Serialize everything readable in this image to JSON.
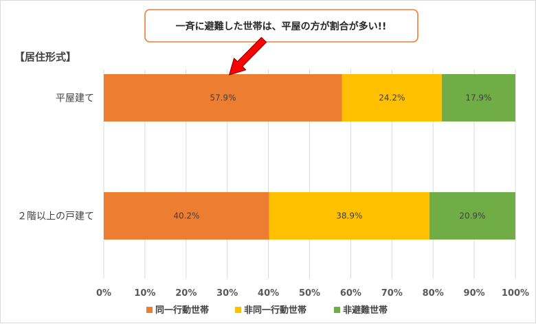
{
  "chart_data": {
    "type": "bar",
    "orientation": "horizontal",
    "stacked": "percent",
    "section_title": "【居住形式】",
    "categories": [
      "平屋建て",
      "２階以上の戸建て"
    ],
    "series": [
      {
        "name": "同一行動世帯",
        "color": "#ED7D31",
        "values": [
          57.9,
          40.2
        ],
        "labels": [
          "57.9%",
          "40.2%"
        ]
      },
      {
        "name": "非同一行動世帯",
        "color": "#FFC000",
        "values": [
          24.2,
          38.9
        ],
        "labels": [
          "24.2%",
          "38.9%"
        ]
      },
      {
        "name": "非避難世帯",
        "color": "#70AD47",
        "values": [
          17.9,
          20.9
        ],
        "labels": [
          "17.9%",
          "20.9%"
        ]
      }
    ],
    "xlim": [
      0,
      100
    ],
    "xticks": [
      "0%",
      "10%",
      "20%",
      "30%",
      "40%",
      "50%",
      "60%",
      "70%",
      "80%",
      "90%",
      "100%"
    ],
    "grid": true,
    "legend_position": "bottom",
    "annotation": {
      "text": "一斉に避難した世帯は、平屋の方が割合が多い!!",
      "target_category": "平屋建て",
      "target_value": 30,
      "border_color": "#ED7D31",
      "arrow_color": "#FF0000"
    }
  }
}
